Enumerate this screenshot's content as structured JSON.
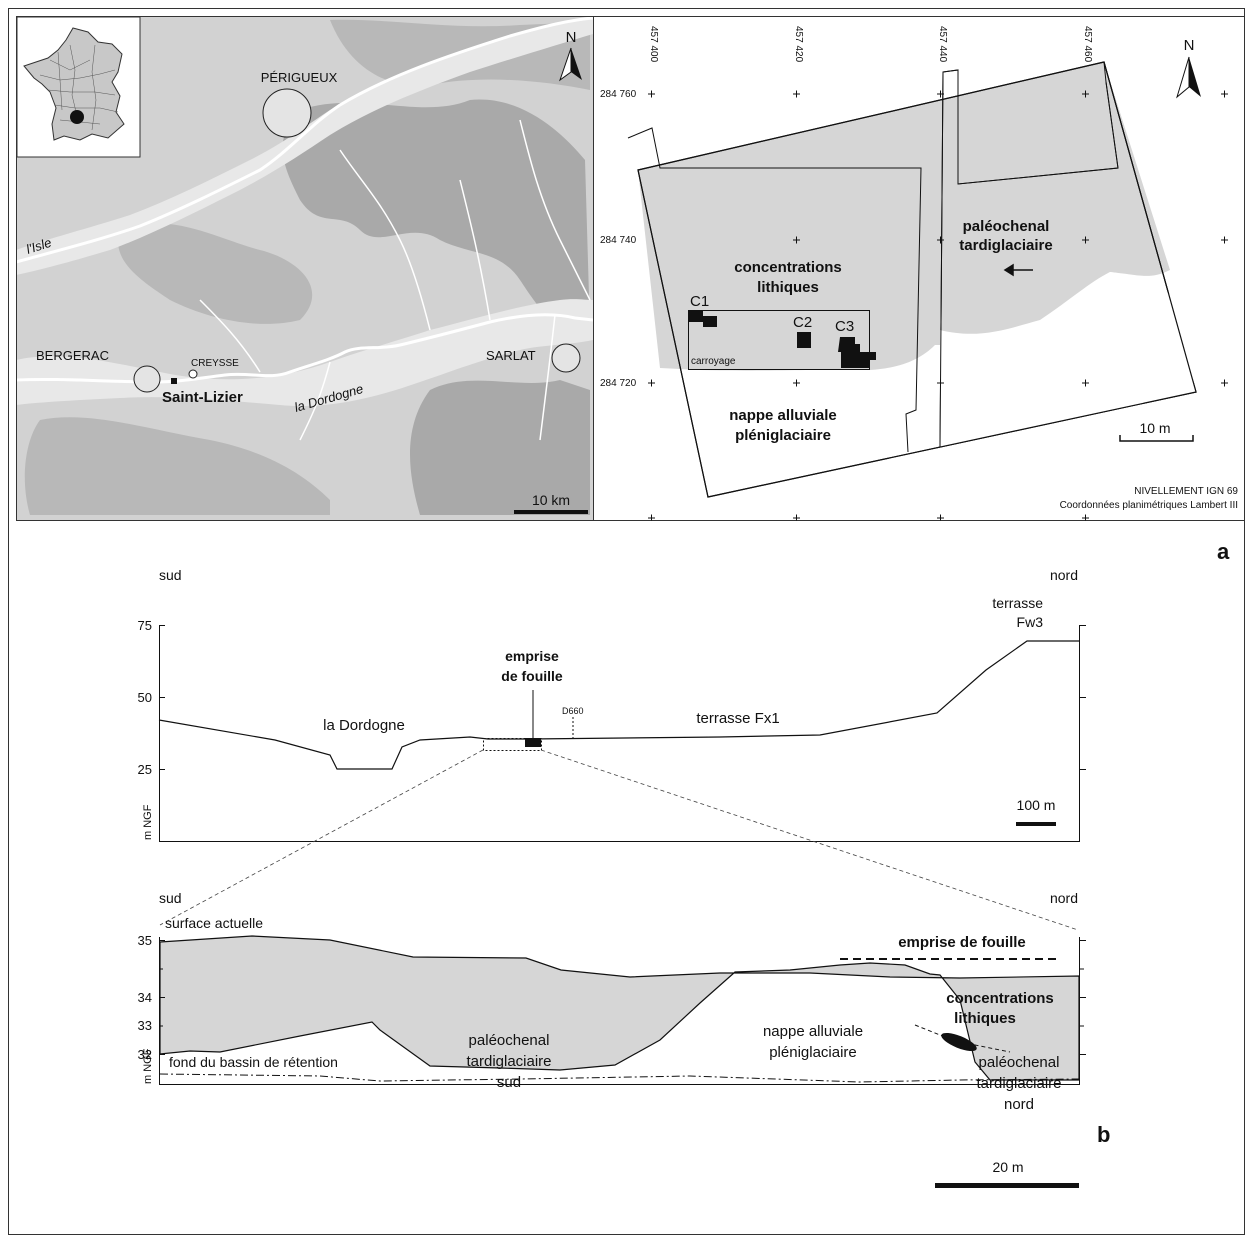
{
  "panel_labels": {
    "a": "a",
    "b": "b"
  },
  "colors": {
    "land": "#d2d2d2",
    "valley": "#e8e8e8",
    "hill": "#a9a9a9",
    "river": "#ffffff",
    "fill": "#d6d6d6",
    "ink": "#111111"
  },
  "regional_map": {
    "north": "N",
    "scale": "10 km",
    "places": {
      "perigueux": "PÉRIGUEUX",
      "bergerac": "BERGERAC",
      "creysse": "CREYSSE",
      "sarlat": "SARLAT",
      "site": "Saint-Lizier",
      "isle": "l'Isle",
      "dordogne": "la Dordogne"
    }
  },
  "site_plan": {
    "north": "N",
    "scale": "10 m",
    "x_ticks": [
      "457 400",
      "457 420",
      "457 440",
      "457 460"
    ],
    "y_ticks": [
      "284 760",
      "284 740",
      "284 720"
    ],
    "paleochannel": [
      "paléochenal",
      "tardiglaciaire"
    ],
    "concentrations": [
      "concentrations",
      "lithiques"
    ],
    "nappe": [
      "nappe alluviale",
      "pléniglaciaire"
    ],
    "grid_label": "carroyage",
    "c1": "C1",
    "c2": "C2",
    "c3": "C3",
    "leveling": "NIVELLEMENT IGN 69",
    "coords": "Coordonnées planimétriques Lambert III"
  },
  "section_a": {
    "south": "sud",
    "north": "nord",
    "y_ticks": [
      "75",
      "50",
      "25"
    ],
    "unit": "m NGF",
    "terrace_fw3": [
      "terrasse",
      "Fw3"
    ],
    "dordogne": "la Dordogne",
    "excavation": [
      "emprise",
      "de fouille"
    ],
    "road": "D660",
    "terrace_fx1": "terrasse Fx1",
    "scale": "100 m"
  },
  "section_b": {
    "south": "sud",
    "north": "nord",
    "y_ticks": [
      "35",
      "34",
      "33",
      "32"
    ],
    "unit": "m NGF",
    "surface": "surface actuelle",
    "excavation": "emprise de fouille",
    "concentrations": [
      "concentrations",
      "lithiques"
    ],
    "paleo_south": [
      "paléochenal",
      "tardiglaciaire",
      "sud"
    ],
    "nappe": [
      "nappe alluviale",
      "pléniglaciaire"
    ],
    "paleo_north": [
      "paléochenal",
      "tardiglaciaire",
      "nord"
    ],
    "basin": "fond du bassin de rétention",
    "scale": "20 m"
  }
}
